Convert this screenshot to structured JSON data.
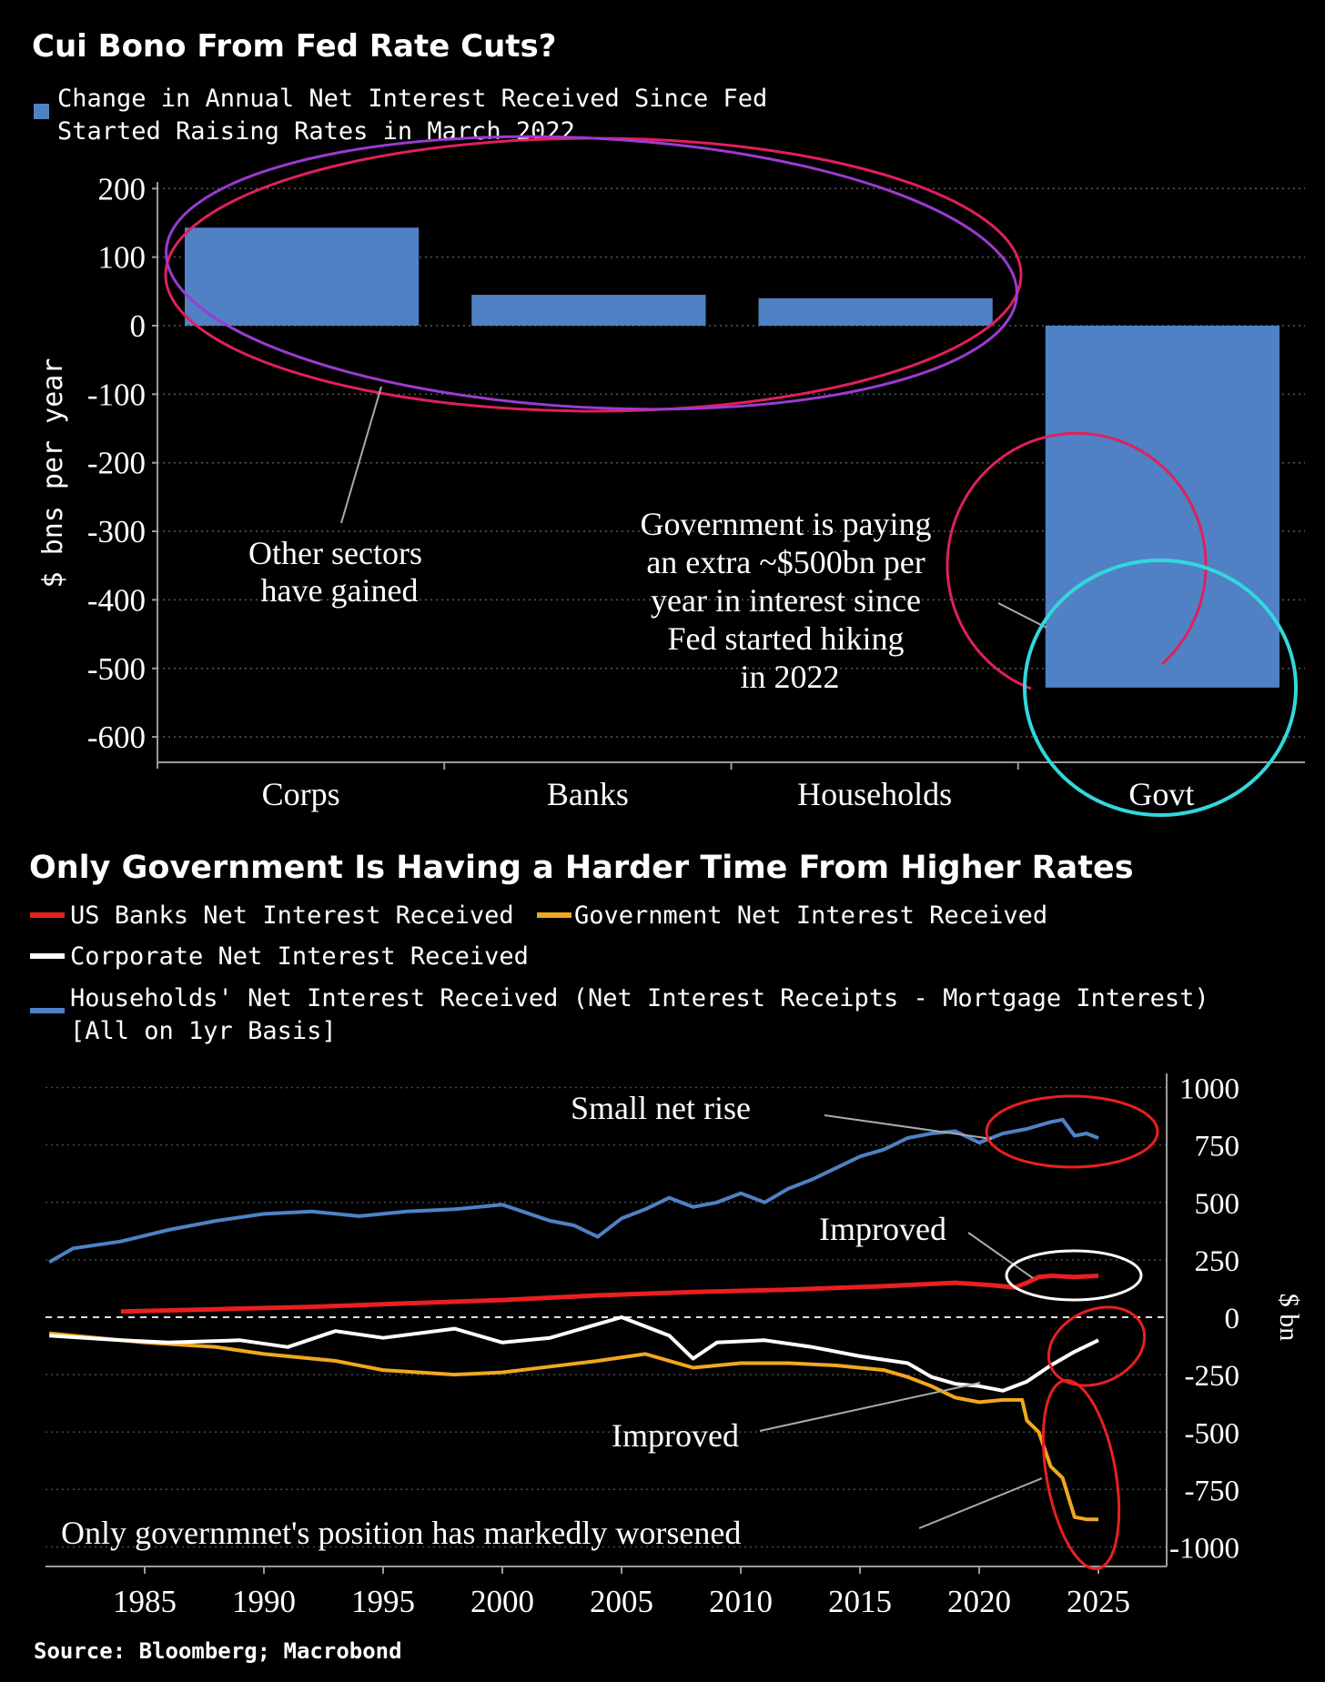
{
  "source": "Source: Bloomberg; Macrobond",
  "chart_data": [
    {
      "type": "bar",
      "title": "Cui Bono From Fed Rate Cuts?",
      "legend": "Change in Annual Net Interest Received Since Fed Started Raising Rates in March 2022",
      "ylabel": "$ bns per year",
      "ylim": [
        -650,
        210
      ],
      "yticks": [
        200,
        100,
        0,
        -100,
        -200,
        -300,
        -400,
        -500,
        -600
      ],
      "categories": [
        "Corps",
        "Banks",
        "Households",
        "Govt"
      ],
      "values": [
        143,
        45,
        40,
        -528
      ],
      "color": "#4f81c4",
      "annotations": [
        {
          "text": [
            "Other sectors",
            "have gained"
          ]
        },
        {
          "text": [
            "Government is paying",
            "an extra ~$500bn per",
            "year in interest since",
            "Fed started hiking",
            "in 2022"
          ]
        }
      ]
    },
    {
      "type": "line",
      "title": "Only Government Is Having a Harder Time From Higher Rates",
      "ylabel": "$ bn",
      "ylim": [
        -1000,
        1000
      ],
      "yticks": [
        1000,
        750,
        500,
        250,
        0,
        -250,
        -500,
        -750,
        -1000
      ],
      "xlim": [
        1981,
        2028
      ],
      "xticks": [
        1985,
        1990,
        1995,
        2000,
        2005,
        2010,
        2015,
        2020,
        2025
      ],
      "legend_footnote": "[All on 1yr Basis]",
      "series": [
        {
          "name": "US Banks Net Interest Received",
          "color": "#e8201f",
          "x": [
            1984,
            1988,
            1992,
            1996,
            2000,
            2004,
            2008,
            2012,
            2016,
            2019,
            2020.5,
            2021.5,
            2022,
            2022.5,
            2023,
            2024,
            2025
          ],
          "y": [
            25,
            35,
            45,
            60,
            75,
            95,
            110,
            120,
            135,
            150,
            140,
            130,
            150,
            175,
            180,
            175,
            180
          ]
        },
        {
          "name": "Government Net Interest Received",
          "color": "#f0a81e",
          "x": [
            1981,
            1983,
            1985,
            1988,
            1990,
            1993,
            1995,
            1998,
            2000,
            2002,
            2004,
            2006,
            2008,
            2010,
            2012,
            2014,
            2016,
            2017,
            2018,
            2019,
            2020,
            2021,
            2021.8,
            2022,
            2022.5,
            2023,
            2023.5,
            2024,
            2024.5,
            2025
          ],
          "y": [
            -70,
            -90,
            -110,
            -130,
            -160,
            -190,
            -230,
            -250,
            -240,
            -215,
            -190,
            -160,
            -220,
            -200,
            -200,
            -210,
            -230,
            -260,
            -300,
            -350,
            -370,
            -360,
            -360,
            -450,
            -500,
            -650,
            -700,
            -870,
            -880,
            -880
          ]
        },
        {
          "name": "Corporate Net Interest Received",
          "color": "#ffffff",
          "x": [
            1981,
            1984,
            1986,
            1989,
            1991,
            1993,
            1995,
            1998,
            2000,
            2002,
            2004,
            2005,
            2007,
            2008,
            2009,
            2011,
            2013,
            2015,
            2017,
            2018,
            2019,
            2020,
            2021,
            2022,
            2023,
            2024,
            2025
          ],
          "y": [
            -80,
            -100,
            -110,
            -100,
            -130,
            -60,
            -90,
            -50,
            -110,
            -90,
            -30,
            0,
            -80,
            -180,
            -110,
            -100,
            -130,
            -170,
            -200,
            -260,
            -290,
            -300,
            -320,
            -280,
            -210,
            -150,
            -100
          ]
        },
        {
          "name": "Households' Net Interest Received (Net Interest Receipts - Mortgage Interest)",
          "color": "#4f81c4",
          "x": [
            1981,
            1982,
            1984,
            1986,
            1988,
            1990,
            1992,
            1994,
            1996,
            1998,
            2000,
            2002,
            2003,
            2004,
            2005,
            2006,
            2007,
            2008,
            2009,
            2010,
            2011,
            2012,
            2013,
            2014,
            2015,
            2016,
            2017,
            2018,
            2019,
            2020,
            2021,
            2022,
            2023,
            2023.5,
            2024,
            2024.5,
            2025
          ],
          "y": [
            240,
            300,
            330,
            380,
            420,
            450,
            460,
            440,
            460,
            470,
            490,
            420,
            400,
            350,
            430,
            470,
            520,
            480,
            500,
            540,
            500,
            560,
            600,
            650,
            700,
            730,
            780,
            800,
            810,
            760,
            800,
            820,
            850,
            860,
            790,
            800,
            780
          ]
        }
      ],
      "annotations": [
        "Small net rise",
        "Improved",
        "Improved",
        "Only governmnet's position has markedly worsened"
      ]
    }
  ]
}
